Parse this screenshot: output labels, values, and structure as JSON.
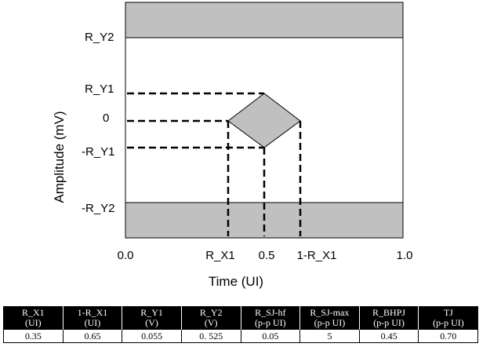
{
  "diagram": {
    "y_axis_title": "Amplitude (mV)",
    "x_axis_title": "Time (UI)",
    "y_labels": {
      "r_y2": "R_Y2",
      "r_y1": "R_Y1",
      "zero": "0",
      "neg_r_y1": "-R_Y1",
      "neg_r_y2": "-R_Y2"
    },
    "x_labels": {
      "x0": "0.0",
      "r_x1": "R_X1",
      "x05": "0.5",
      "one_minus_r_x1": "1-R_X1",
      "x1": "1.0"
    },
    "colors": {
      "mask_fill": "#c0c0c0",
      "outline": "#000000"
    }
  },
  "table": {
    "columns": [
      {
        "name": "R_X1",
        "unit": "(UI)",
        "value": "0.35"
      },
      {
        "name": "1-R_X1",
        "unit": "(UI)",
        "value": "0.65"
      },
      {
        "name": "R_Y1",
        "unit": "(V)",
        "value": "0.055"
      },
      {
        "name": "R_Y2",
        "unit": "(V)",
        "value": "0. 525"
      },
      {
        "name": "R_SJ-hf",
        "unit": "(p-p UI)",
        "value": "0.05"
      },
      {
        "name": "R_SJ-max",
        "unit": "(p-p UI)",
        "value": "5"
      },
      {
        "name": "R_BHPJ",
        "unit": "(p-p UI)",
        "value": "0.45"
      },
      {
        "name": "TJ",
        "unit": "(p-p UI)",
        "value": "0.70"
      }
    ]
  }
}
